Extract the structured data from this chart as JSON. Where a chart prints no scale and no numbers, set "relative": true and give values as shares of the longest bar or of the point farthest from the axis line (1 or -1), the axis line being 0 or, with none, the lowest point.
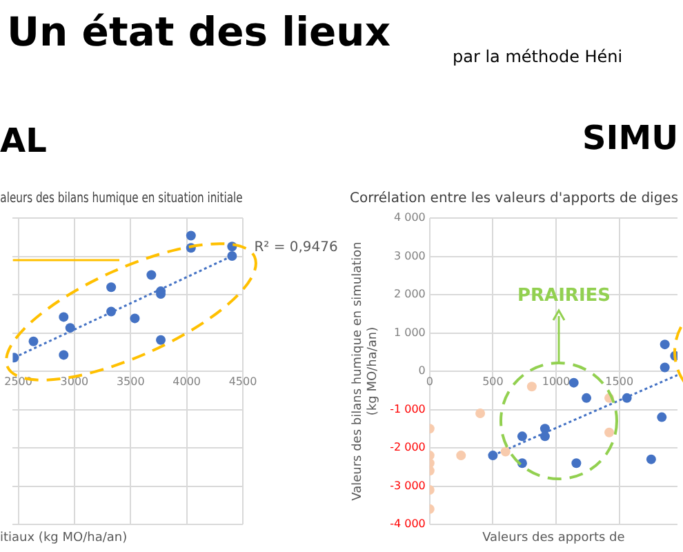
{
  "chart_data": [
    {
      "type": "scatter",
      "title": "aleurs des bilans humique en situation initiale",
      "xlabel": "itiaux (kg MO/ha/an)",
      "relative": true,
      "xlim": [
        2450,
        4500
      ],
      "xticks": [
        2500,
        3000,
        3500,
        4000,
        4500
      ],
      "grid": true,
      "legend": false,
      "marker": "circle",
      "annotations": [
        "Un état des lieux",
        "par la méthode Héni",
        "AL",
        "R² = 0,9476"
      ],
      "series": [
        {
          "color": "#4472c4",
          "x": [
            4038,
            4038,
            4404,
            4404,
            3685,
            3327,
            3769,
            3769,
            3327,
            3538,
            2904,
            2962,
            2635,
            3769,
            2904,
            2462
          ],
          "values": [
            1,
            0.91,
            0.92,
            0.85,
            0.71,
            0.62,
            0.59,
            0.57,
            0.44,
            0.39,
            0.4,
            0.32,
            0.22,
            0.23,
            0.12,
            0.1
          ]
        },
        {
          "type": "line",
          "color": "#4472c4",
          "line_style": "dotted",
          "marker": "none",
          "x": [
            2462,
            4404
          ],
          "values": [
            0.1,
            0.85
          ]
        },
        {
          "type": "line",
          "color": "#ffc000",
          "line_style": "solid",
          "marker": "none",
          "x": [
            2450,
            3400
          ],
          "values": [
            0.82,
            0.82
          ]
        }
      ]
    },
    {
      "type": "scatter",
      "title": "Corrélation entre les valeurs d'apports de diges",
      "xlabel": "Valeurs des apports de",
      "ylabel": "Valeurs des bilans humique en simulation (kg MO/ha/an)",
      "xlim": [
        0,
        1960
      ],
      "xticks": [
        0,
        500,
        1000,
        1500
      ],
      "ylim": [
        -4000,
        4000
      ],
      "yticks": [
        {
          "value": -4000,
          "label": "-4 000"
        },
        {
          "value": -3000,
          "label": "-3 000"
        },
        {
          "value": -2000,
          "label": "-2 000"
        },
        {
          "value": -1000,
          "label": "-1 000"
        },
        0,
        {
          "value": 1000,
          "label": "1 000"
        },
        {
          "value": 2000,
          "label": "2 000"
        },
        {
          "value": 3000,
          "label": "3 000"
        },
        {
          "value": 4000,
          "label": "4 000"
        }
      ],
      "grid": true,
      "legend": false,
      "marker": "circle",
      "annotations": [
        "SIMU",
        "PRAIRIES"
      ],
      "series": [
        {
          "color": "#f8cbad",
          "x": [
            0,
            0,
            0,
            0,
            0,
            0,
            248,
            400,
            600,
            808,
            1420,
            1420
          ],
          "values": [
            -1500,
            -2200,
            -2400,
            -2600,
            -3100,
            -3600,
            -2200,
            -1100,
            -2100,
            -400,
            -700,
            -1600
          ]
        },
        {
          "color": "#4472c4",
          "x": [
            500,
            732,
            732,
            912,
            912,
            1140,
            1240,
            1160,
            1560,
            1752,
            1836,
            1860,
            1860,
            1940
          ],
          "values": [
            -2200,
            -1700,
            -2400,
            -1500,
            -1700,
            -300,
            -700,
            -2400,
            -700,
            -2300,
            -1200,
            700,
            100,
            400
          ]
        },
        {
          "type": "line",
          "color": "#4472c4",
          "line_style": "dotted",
          "marker": "none",
          "x": [
            500,
            1960
          ],
          "values": [
            -2200,
            -100
          ]
        }
      ]
    }
  ]
}
